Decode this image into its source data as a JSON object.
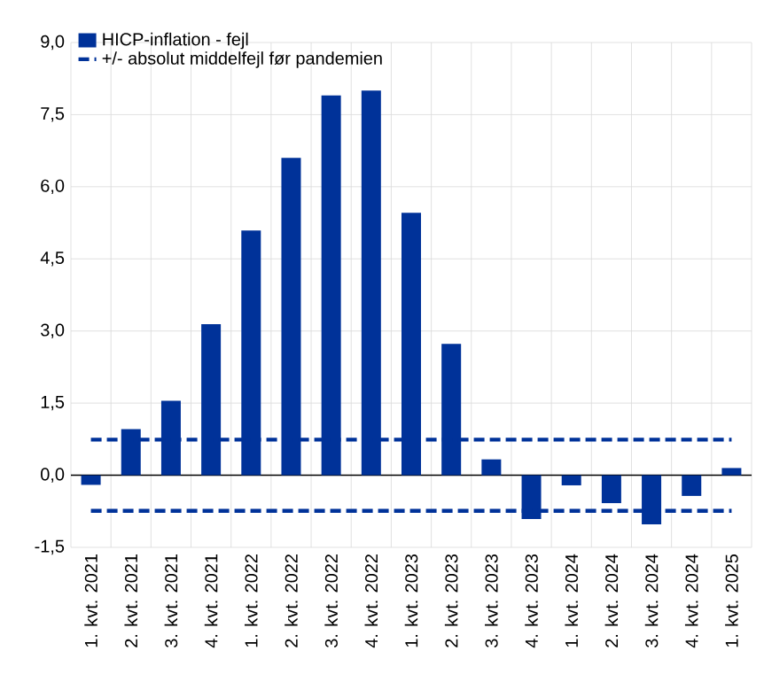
{
  "chart_data": {
    "type": "bar",
    "categories": [
      "1. kvt. 2021",
      "2. kvt. 2021",
      "3. kvt. 2021",
      "4. kvt. 2021",
      "1. kvt. 2022",
      "2. kvt. 2022",
      "3. kvt. 2022",
      "4. kvt. 2022",
      "1. kvt. 2023",
      "2. kvt. 2023",
      "3. kvt. 2023",
      "4. kvt. 2023",
      "1. kvt. 2024",
      "2. kvt. 2024",
      "3. kvt. 2024",
      "4. kvt. 2024",
      "1. kvt. 2025"
    ],
    "series": [
      {
        "name": "HICP-inflation - fejl",
        "color": "#003299",
        "values": [
          -0.2,
          0.96,
          1.55,
          3.14,
          5.09,
          6.6,
          7.9,
          8.0,
          5.46,
          2.73,
          0.33,
          -0.91,
          -0.21,
          -0.58,
          -1.02,
          -0.43,
          0.15
        ]
      },
      {
        "name": "+/- absolut middelfejl før pandemien",
        "type": "line",
        "line_style": "dashed",
        "color": "#003299",
        "values": [
          0.74,
          0.74,
          0.74,
          0.74,
          0.74,
          0.74,
          0.74,
          0.74,
          0.74,
          0.74,
          0.74,
          0.74,
          0.74,
          0.74,
          0.74,
          0.74,
          0.74
        ]
      },
      {
        "type": "line",
        "line_style": "dashed",
        "color": "#003299",
        "values": [
          -0.74,
          -0.74,
          -0.74,
          -0.74,
          -0.74,
          -0.74,
          -0.74,
          -0.74,
          -0.74,
          -0.74,
          -0.74,
          -0.74,
          -0.74,
          -0.74,
          -0.74,
          -0.74,
          -0.74
        ]
      }
    ],
    "ylim": [
      -1.5,
      9.0
    ],
    "yticks": [
      {
        "value": -1.5,
        "label": "-1,5"
      },
      {
        "value": 0,
        "label": "0,0"
      },
      {
        "value": 1.5,
        "label": "1,5"
      },
      {
        "value": 3,
        "label": "3,0"
      },
      {
        "value": 4.5,
        "label": "4,5"
      },
      {
        "value": 6,
        "label": "6,0"
      },
      {
        "value": 7.5,
        "label": "7,5"
      },
      {
        "value": 9,
        "label": "9,0"
      }
    ],
    "grid": true,
    "legend": "top left"
  }
}
